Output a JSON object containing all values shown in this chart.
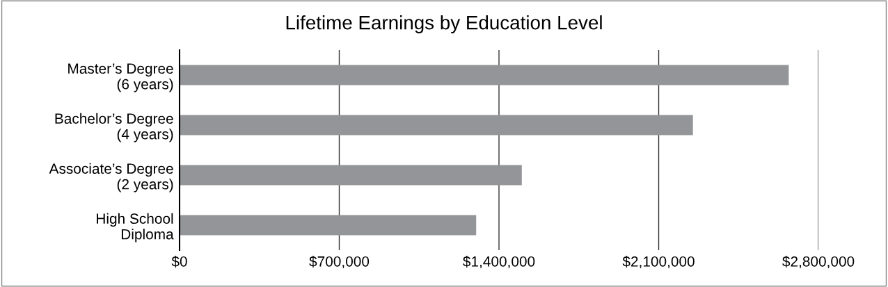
{
  "chart_data": {
    "type": "bar",
    "orientation": "horizontal",
    "title": "Lifetime Earnings by Education Level",
    "categories": [
      "Master’s Degree\n(6 years)",
      "Bachelor’s Degree\n(4 years)",
      "Associate’s Degree\n(2 years)",
      "High School\nDiploma"
    ],
    "values": [
      2670000,
      2250000,
      1500000,
      1300000
    ],
    "color": "#939598",
    "xlim": [
      0,
      2800000
    ],
    "xticks": [
      {
        "value": 0,
        "label": "$0"
      },
      {
        "value": 700000,
        "label": "$700,000"
      },
      {
        "value": 1400000,
        "label": "$1,400,000"
      },
      {
        "value": 2100000,
        "label": "$2,100,000"
      },
      {
        "value": 2800000,
        "label": "$2,800,000"
      }
    ],
    "grid": "x",
    "legend": false
  }
}
